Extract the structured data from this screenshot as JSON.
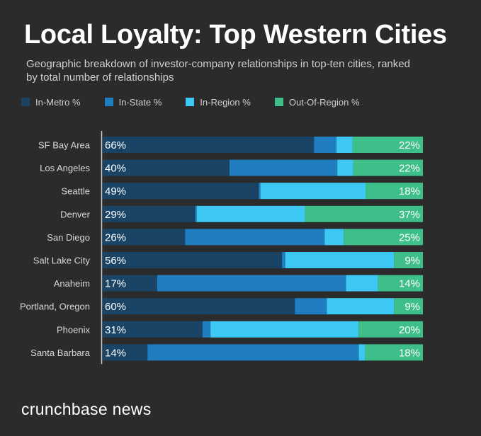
{
  "title": "Local Loyalty: Top Western Cities",
  "subtitle": "Geographic breakdown of investor-company relationships in top-ten cities, ranked by total number of relationships",
  "footer": "crunchbase news",
  "colors": {
    "background": "#2b2b2b",
    "in_metro": "#1a4466",
    "in_state": "#1f7dc0",
    "in_region": "#3dc8f4",
    "out_of_region": "#3ebf8a"
  },
  "legend": [
    {
      "label": "In-Metro %",
      "color": "#1a4466"
    },
    {
      "label": "In-State %",
      "color": "#1f7dc0"
    },
    {
      "label": "In-Region %",
      "color": "#3dc8f4"
    },
    {
      "label": "Out-Of-Region %",
      "color": "#3ebf8a"
    }
  ],
  "chart_data": {
    "type": "bar",
    "orientation": "horizontal",
    "stacked": true,
    "title": "Local Loyalty: Top Western Cities",
    "subtitle": "Geographic breakdown of investor-company relationships in top-ten cities, ranked by total number of relationships",
    "xlim": [
      0,
      100
    ],
    "grid": false,
    "legend_position": "top",
    "categories": [
      "SF Bay Area",
      "Los Angeles",
      "Seattle",
      "Denver",
      "San Diego",
      "Salt Lake City",
      "Anaheim",
      "Portland, Oregon",
      "Phoenix",
      "Santa Barbara"
    ],
    "series": [
      {
        "name": "In-Metro %",
        "color": "#1a4466",
        "values": [
          66,
          40,
          49,
          29,
          26,
          56,
          17,
          60,
          31,
          14
        ]
      },
      {
        "name": "In-State %",
        "color": "#1f7dc0",
        "values": [
          7,
          34,
          0.5,
          0.5,
          44,
          1,
          59,
          10,
          2.5,
          66
        ]
      },
      {
        "name": "In-Region %",
        "color": "#3dc8f4",
        "values": [
          5,
          5,
          33,
          34,
          6,
          34,
          10,
          21,
          46,
          2
        ]
      },
      {
        "name": "Out-Of-Region %",
        "color": "#3ebf8a",
        "values": [
          22,
          22,
          18,
          37,
          25,
          9,
          14,
          9,
          20,
          18
        ]
      }
    ],
    "data_labels": {
      "in_metro": [
        "66%",
        "40%",
        "49%",
        "29%",
        "26%",
        "56%",
        "17%",
        "60%",
        "31%",
        "14%"
      ],
      "out_of_region": [
        "22%",
        "22%",
        "18%",
        "37%",
        "25%",
        "9%",
        "14%",
        "9%",
        "20%",
        "18%"
      ]
    }
  }
}
